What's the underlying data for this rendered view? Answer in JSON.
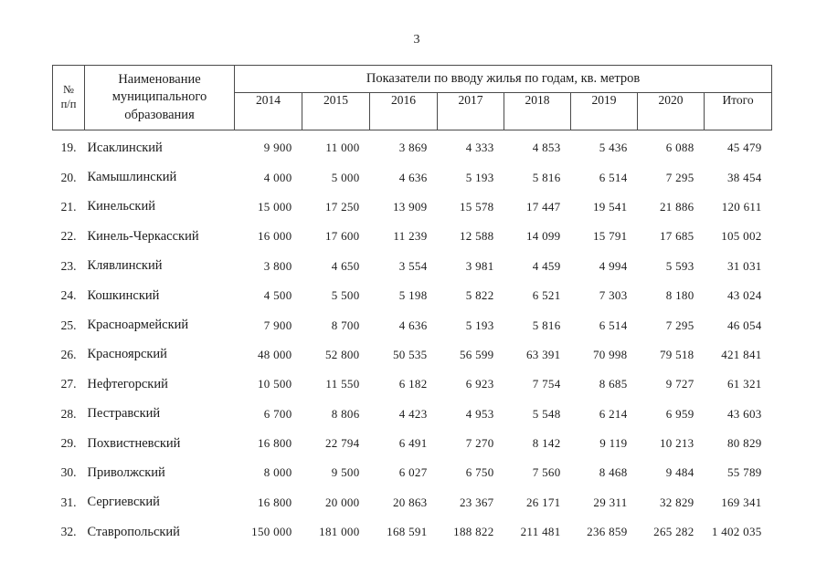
{
  "page": {
    "number": "3"
  },
  "table": {
    "header": {
      "num_line1": "№",
      "num_line2": "п/п",
      "name_line1": "Наименование",
      "name_line2": "муниципального",
      "name_line3": "образования",
      "group_label": "Показатели по вводу жилья по годам, кв. метров",
      "years": [
        "2014",
        "2015",
        "2016",
        "2017",
        "2018",
        "2019",
        "2020",
        "Итого"
      ]
    },
    "rows": [
      {
        "num": "19.",
        "name": "Исаклинский",
        "values": [
          "9 900",
          "11 000",
          "3 869",
          "4 333",
          "4 853",
          "5 436",
          "6 088",
          "45 479"
        ]
      },
      {
        "num": "20.",
        "name": "Камышлинский",
        "values": [
          "4 000",
          "5 000",
          "4 636",
          "5 193",
          "5 816",
          "6 514",
          "7 295",
          "38 454"
        ]
      },
      {
        "num": "21.",
        "name": "Кинельский",
        "values": [
          "15 000",
          "17 250",
          "13 909",
          "15 578",
          "17 447",
          "19 541",
          "21 886",
          "120 611"
        ]
      },
      {
        "num": "22.",
        "name": "Кинель-Черкасский",
        "values": [
          "16 000",
          "17 600",
          "11 239",
          "12 588",
          "14 099",
          "15 791",
          "17 685",
          "105 002"
        ]
      },
      {
        "num": "23.",
        "name": "Клявлинский",
        "values": [
          "3 800",
          "4 650",
          "3 554",
          "3 981",
          "4 459",
          "4 994",
          "5 593",
          "31 031"
        ]
      },
      {
        "num": "24.",
        "name": "Кошкинский",
        "values": [
          "4 500",
          "5 500",
          "5 198",
          "5 822",
          "6 521",
          "7 303",
          "8 180",
          "43 024"
        ]
      },
      {
        "num": "25.",
        "name": "Красноармейский",
        "values": [
          "7 900",
          "8 700",
          "4 636",
          "5 193",
          "5 816",
          "6 514",
          "7 295",
          "46 054"
        ]
      },
      {
        "num": "26.",
        "name": "Красноярский",
        "values": [
          "48 000",
          "52 800",
          "50 535",
          "56 599",
          "63 391",
          "70 998",
          "79 518",
          "421 841"
        ]
      },
      {
        "num": "27.",
        "name": "Нефтегорский",
        "values": [
          "10 500",
          "11 550",
          "6 182",
          "6 923",
          "7 754",
          "8 685",
          "9 727",
          "61 321"
        ]
      },
      {
        "num": "28.",
        "name": "Пестравский",
        "values": [
          "6 700",
          "8 806",
          "4 423",
          "4 953",
          "5 548",
          "6 214",
          "6 959",
          "43 603"
        ]
      },
      {
        "num": "29.",
        "name": "Похвистневский",
        "values": [
          "16 800",
          "22 794",
          "6 491",
          "7 270",
          "8 142",
          "9 119",
          "10 213",
          "80 829"
        ]
      },
      {
        "num": "30.",
        "name": "Приволжский",
        "values": [
          "8 000",
          "9 500",
          "6 027",
          "6 750",
          "7 560",
          "8 468",
          "9 484",
          "55 789"
        ]
      },
      {
        "num": "31.",
        "name": "Сергиевский",
        "values": [
          "16 800",
          "20 000",
          "20 863",
          "23 367",
          "26 171",
          "29 311",
          "32 829",
          "169 341"
        ]
      },
      {
        "num": "32.",
        "name": "Ставропольский",
        "values": [
          "150 000",
          "181 000",
          "168 591",
          "188 822",
          "211 481",
          "236 859",
          "265 282",
          "1 402 035"
        ]
      }
    ]
  }
}
